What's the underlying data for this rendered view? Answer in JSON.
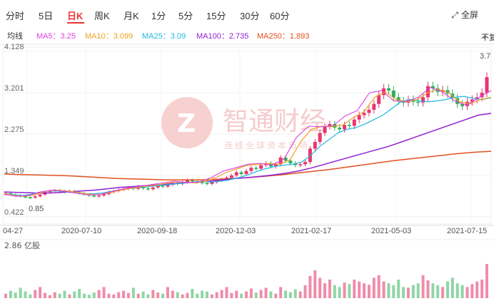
{
  "tabs": [
    "分时",
    "5日",
    "日K",
    "周K",
    "月K",
    "1分",
    "5分",
    "15分",
    "30分",
    "60分"
  ],
  "active_tab": "日K",
  "fullscreen_label": "全屏",
  "ma_title": "均线",
  "ma_items": [
    {
      "label": "MA5：3.25",
      "color": "#e040e0"
    },
    {
      "label": "MA10：3.099",
      "color": "#f0a020"
    },
    {
      "label": "MA25：3.09",
      "color": "#20b8e0"
    },
    {
      "label": "MA100：2.735",
      "color": "#9020d0"
    },
    {
      "label": "MA250：1.893",
      "color": "#e05020"
    }
  ],
  "adjust_label": "不复权",
  "adjust_icon": "chevron-down-icon",
  "watermark": {
    "cn": "智通财经",
    "sub": "连线全球资本市场"
  },
  "chart_data": {
    "type": "candlestick",
    "y_ticks": [
      "4.128",
      "3.201",
      "2.275",
      "1.349",
      "0.422"
    ],
    "ylim": [
      0.422,
      4.128
    ],
    "x_ticks": [
      "04-27",
      "2020-07-10",
      "2020-09-18",
      "2020-12-03",
      "2021-02-17",
      "2021-05-03",
      "2021-07-15"
    ],
    "annotations": {
      "low": "0.85",
      "high": "3.7"
    },
    "volume_label": "2.86 亿股",
    "close_series": [
      0.95,
      0.92,
      0.9,
      0.88,
      0.86,
      0.85,
      0.88,
      0.92,
      0.98,
      1.0,
      1.02,
      1.0,
      0.98,
      1.0,
      0.97,
      0.95,
      0.92,
      0.9,
      0.88,
      0.9,
      0.93,
      0.98,
      1.0,
      1.03,
      1.05,
      1.08,
      1.05,
      1.1,
      1.06,
      1.04,
      1.08,
      1.12,
      1.1,
      1.14,
      1.18,
      1.16,
      1.2,
      1.24,
      1.22,
      1.2,
      1.18,
      1.16,
      1.2,
      1.24,
      1.26,
      1.3,
      1.35,
      1.42,
      1.38,
      1.45,
      1.52,
      1.5,
      1.58,
      1.62,
      1.55,
      1.6,
      1.75,
      1.68,
      1.62,
      1.58,
      1.6,
      1.65,
      1.95,
      2.1,
      2.3,
      2.45,
      2.5,
      2.42,
      2.38,
      2.48,
      2.46,
      2.6,
      2.7,
      2.75,
      2.82,
      2.95,
      3.15,
      3.3,
      3.25,
      3.1,
      3.02,
      2.98,
      3.05,
      3.0,
      2.98,
      3.1,
      3.35,
      3.3,
      3.22,
      3.26,
      3.18,
      3.08,
      2.95,
      2.9,
      3.0,
      3.05,
      3.1,
      3.2,
      3.55
    ],
    "ma100": [
      0.98,
      0.97,
      0.96,
      0.95,
      0.96,
      0.98,
      1.0,
      1.02,
      1.05,
      1.08,
      1.1,
      1.12,
      1.14,
      1.16,
      1.18,
      1.2,
      1.22,
      1.25,
      1.28,
      1.3,
      1.33,
      1.36,
      1.4,
      1.45,
      1.52,
      1.6,
      1.68,
      1.76,
      1.84,
      1.92,
      2.0,
      2.1,
      2.2,
      2.3,
      2.4,
      2.5,
      2.6,
      2.7,
      2.74
    ],
    "ma250": [
      1.38,
      1.37,
      1.36,
      1.35,
      1.34,
      1.32,
      1.3,
      1.28,
      1.27,
      1.26,
      1.25,
      1.25,
      1.25,
      1.26,
      1.28,
      1.3,
      1.33,
      1.36,
      1.4,
      1.44,
      1.48,
      1.53,
      1.58,
      1.63,
      1.68,
      1.72,
      1.76,
      1.8,
      1.84,
      1.87,
      1.89
    ],
    "ma25": [
      0.95,
      0.92,
      0.9,
      0.93,
      0.98,
      1.0,
      1.0,
      0.98,
      0.96,
      0.94,
      0.94,
      0.96,
      1.0,
      1.03,
      1.06,
      1.08,
      1.1,
      1.12,
      1.14,
      1.16,
      1.18,
      1.2,
      1.22,
      1.2,
      1.22,
      1.25,
      1.3,
      1.36,
      1.44,
      1.5,
      1.55,
      1.58,
      1.6,
      1.65,
      1.8,
      2.0,
      2.15,
      2.3,
      2.38,
      2.42,
      2.5,
      2.6,
      2.7,
      2.85,
      3.0,
      3.05,
      3.02,
      3.0,
      3.02,
      3.05,
      3.1,
      3.12,
      3.08,
      3.05,
      3.09
    ],
    "ma10": [
      0.95,
      0.9,
      0.88,
      0.92,
      1.0,
      1.02,
      1.0,
      0.97,
      0.93,
      0.92,
      0.96,
      1.02,
      1.06,
      1.1,
      1.12,
      1.16,
      1.2,
      1.2,
      1.18,
      1.22,
      1.3,
      1.42,
      1.5,
      1.58,
      1.6,
      1.62,
      1.6,
      1.7,
      2.1,
      2.38,
      2.45,
      2.44,
      2.48,
      2.65,
      2.78,
      3.1,
      3.22,
      3.05,
      3.0,
      3.05,
      3.2,
      3.28,
      3.2,
      3.0,
      2.95,
      3.05,
      3.1
    ],
    "ma5": [
      0.93,
      0.88,
      0.9,
      0.98,
      1.02,
      0.99,
      0.95,
      0.91,
      0.93,
      1.0,
      1.06,
      1.1,
      1.14,
      1.18,
      1.22,
      1.19,
      1.2,
      1.3,
      1.45,
      1.52,
      1.6,
      1.62,
      1.58,
      1.72,
      2.2,
      2.45,
      2.44,
      2.46,
      2.68,
      2.8,
      3.2,
      3.25,
      3.02,
      3.0,
      3.1,
      3.32,
      3.22,
      3.02,
      2.92,
      3.1,
      3.25
    ],
    "volume": [
      0.12,
      0.2,
      0.15,
      0.28,
      0.18,
      0.1,
      0.22,
      0.3,
      0.14,
      0.08,
      0.16,
      0.12,
      0.2,
      0.1,
      0.18,
      0.25,
      0.12,
      0.09,
      0.15,
      0.22,
      0.3,
      0.12,
      0.1,
      0.16,
      0.2,
      0.14,
      0.28,
      0.12,
      0.18,
      0.1,
      0.22,
      0.15,
      0.12,
      0.3,
      0.2,
      0.16,
      0.1,
      0.14,
      0.25,
      0.12,
      0.2,
      0.18,
      0.1,
      0.16,
      0.22,
      0.3,
      0.14,
      0.2,
      0.12,
      0.18,
      0.26,
      0.15,
      0.22,
      0.28,
      0.18,
      0.12,
      0.3,
      0.2,
      0.16,
      0.24,
      0.18,
      0.35,
      0.6,
      0.75,
      0.55,
      0.4,
      0.5,
      0.35,
      0.3,
      0.42,
      0.38,
      0.5,
      0.45,
      0.4,
      0.36,
      0.55,
      0.62,
      0.45,
      0.4,
      0.35,
      0.5,
      0.3,
      0.28,
      0.35,
      0.4,
      0.62,
      0.48,
      0.4,
      0.35,
      0.3,
      0.45,
      0.55,
      0.4,
      0.35,
      0.3,
      0.38,
      0.45,
      0.5,
      0.92
    ]
  }
}
